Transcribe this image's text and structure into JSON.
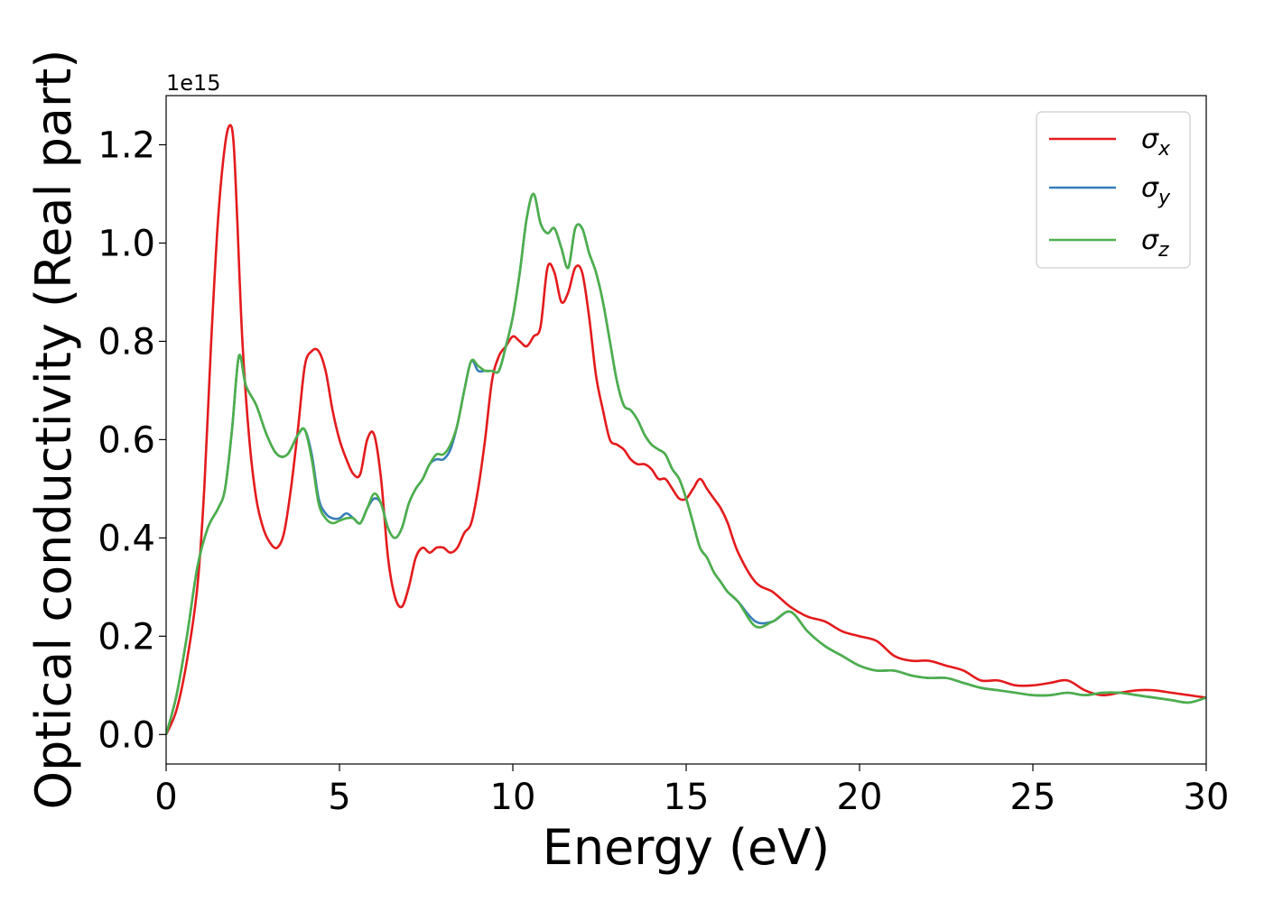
{
  "chart_data": {
    "type": "line",
    "xlabel": "Energy (eV)",
    "ylabel": "Optical conductivity (Real part)",
    "y_offset_label": "1e15",
    "xlim": [
      0,
      30
    ],
    "ylim": [
      -0.06,
      1.3
    ],
    "x_ticks": [
      0,
      5,
      10,
      15,
      20,
      25,
      30
    ],
    "x_tick_labels": [
      "0",
      "5",
      "10",
      "15",
      "20",
      "25",
      "30"
    ],
    "y_ticks": [
      0.0,
      0.2,
      0.4,
      0.6,
      0.8,
      1.0,
      1.2
    ],
    "y_tick_labels": [
      "0.0",
      "0.2",
      "0.4",
      "0.6",
      "0.8",
      "1.0",
      "1.2"
    ],
    "grid": false,
    "legend_position": "top-right",
    "series": [
      {
        "name": "σx",
        "name_base": "σ",
        "name_sub": "x",
        "color": "#e41a1c",
        "x": [
          0.0,
          0.3,
          0.6,
          0.9,
          1.1,
          1.3,
          1.5,
          1.7,
          1.85,
          1.95,
          2.05,
          2.2,
          2.4,
          2.6,
          2.8,
          3.0,
          3.2,
          3.4,
          3.6,
          3.8,
          4.0,
          4.2,
          4.4,
          4.6,
          4.8,
          5.0,
          5.2,
          5.4,
          5.6,
          5.8,
          6.0,
          6.2,
          6.4,
          6.6,
          6.8,
          7.0,
          7.2,
          7.4,
          7.6,
          7.8,
          8.0,
          8.2,
          8.4,
          8.6,
          8.8,
          9.0,
          9.2,
          9.4,
          9.6,
          9.8,
          10.0,
          10.2,
          10.4,
          10.6,
          10.8,
          11.0,
          11.2,
          11.4,
          11.6,
          11.8,
          12.0,
          12.2,
          12.4,
          12.6,
          12.8,
          13.0,
          13.2,
          13.4,
          13.6,
          13.8,
          14.0,
          14.2,
          14.4,
          14.6,
          14.8,
          15.0,
          15.2,
          15.4,
          15.6,
          15.8,
          16.0,
          16.2,
          16.5,
          17.0,
          17.5,
          18.0,
          18.5,
          19.0,
          19.5,
          20.0,
          20.5,
          21.0,
          21.5,
          22.0,
          22.5,
          23.0,
          23.5,
          24.0,
          24.5,
          25.0,
          25.5,
          26.0,
          26.5,
          27.0,
          27.5,
          28.0,
          28.5,
          29.0,
          29.5,
          30.0
        ],
        "y": [
          0.0,
          0.05,
          0.15,
          0.3,
          0.5,
          0.8,
          1.05,
          1.2,
          1.24,
          1.2,
          1.05,
          0.8,
          0.6,
          0.48,
          0.42,
          0.39,
          0.38,
          0.41,
          0.5,
          0.62,
          0.75,
          0.78,
          0.78,
          0.74,
          0.66,
          0.6,
          0.56,
          0.53,
          0.53,
          0.6,
          0.61,
          0.52,
          0.36,
          0.28,
          0.26,
          0.3,
          0.36,
          0.38,
          0.37,
          0.38,
          0.38,
          0.37,
          0.38,
          0.41,
          0.43,
          0.5,
          0.6,
          0.72,
          0.77,
          0.79,
          0.81,
          0.8,
          0.79,
          0.81,
          0.83,
          0.95,
          0.94,
          0.88,
          0.9,
          0.95,
          0.94,
          0.85,
          0.73,
          0.66,
          0.6,
          0.59,
          0.58,
          0.56,
          0.55,
          0.55,
          0.54,
          0.52,
          0.52,
          0.5,
          0.48,
          0.48,
          0.5,
          0.52,
          0.5,
          0.48,
          0.46,
          0.43,
          0.37,
          0.31,
          0.29,
          0.26,
          0.24,
          0.23,
          0.21,
          0.2,
          0.19,
          0.16,
          0.15,
          0.15,
          0.14,
          0.13,
          0.11,
          0.11,
          0.1,
          0.1,
          0.105,
          0.11,
          0.09,
          0.08,
          0.085,
          0.09,
          0.09,
          0.085,
          0.08,
          0.075
        ]
      },
      {
        "name": "σy",
        "name_base": "σ",
        "name_sub": "y",
        "color": "#377eb8",
        "x": [
          0.0,
          0.3,
          0.6,
          0.9,
          1.2,
          1.5,
          1.7,
          1.9,
          2.1,
          2.3,
          2.6,
          2.9,
          3.2,
          3.5,
          3.8,
          4.0,
          4.2,
          4.4,
          4.6,
          4.8,
          5.0,
          5.2,
          5.4,
          5.6,
          5.8,
          6.0,
          6.2,
          6.4,
          6.6,
          6.8,
          7.0,
          7.2,
          7.4,
          7.6,
          7.8,
          8.0,
          8.2,
          8.4,
          8.6,
          8.8,
          9.0,
          9.2,
          9.4,
          9.6,
          9.8,
          10.0,
          10.2,
          10.4,
          10.6,
          10.8,
          11.0,
          11.2,
          11.4,
          11.6,
          11.8,
          12.0,
          12.2,
          12.4,
          12.6,
          12.8,
          13.0,
          13.2,
          13.4,
          13.6,
          13.8,
          14.0,
          14.2,
          14.4,
          14.6,
          14.8,
          15.0,
          15.2,
          15.4,
          15.6,
          15.8,
          16.0,
          16.2,
          16.5,
          17.0,
          17.5,
          18.0,
          18.5,
          19.0,
          19.5,
          20.0,
          20.5,
          21.0,
          21.5,
          22.0,
          22.5,
          23.0,
          23.5,
          24.0,
          24.5,
          25.0,
          25.5,
          26.0,
          26.5,
          27.0,
          27.5,
          28.0,
          28.5,
          29.0,
          29.5,
          30.0
        ],
        "y": [
          0.0,
          0.08,
          0.2,
          0.34,
          0.42,
          0.46,
          0.5,
          0.62,
          0.77,
          0.71,
          0.67,
          0.61,
          0.57,
          0.57,
          0.61,
          0.62,
          0.57,
          0.48,
          0.45,
          0.44,
          0.44,
          0.45,
          0.44,
          0.43,
          0.46,
          0.48,
          0.47,
          0.42,
          0.4,
          0.42,
          0.47,
          0.5,
          0.52,
          0.55,
          0.56,
          0.56,
          0.58,
          0.63,
          0.7,
          0.76,
          0.74,
          0.74,
          0.74,
          0.74,
          0.79,
          0.85,
          0.94,
          1.05,
          1.1,
          1.04,
          1.02,
          1.03,
          0.99,
          0.95,
          1.03,
          1.03,
          0.98,
          0.94,
          0.88,
          0.8,
          0.72,
          0.67,
          0.66,
          0.64,
          0.61,
          0.59,
          0.58,
          0.57,
          0.54,
          0.52,
          0.48,
          0.43,
          0.38,
          0.36,
          0.33,
          0.31,
          0.29,
          0.27,
          0.23,
          0.23,
          0.25,
          0.21,
          0.18,
          0.16,
          0.14,
          0.13,
          0.13,
          0.12,
          0.115,
          0.115,
          0.105,
          0.095,
          0.09,
          0.085,
          0.08,
          0.08,
          0.085,
          0.08,
          0.085,
          0.085,
          0.08,
          0.075,
          0.07,
          0.065,
          0.075
        ]
      },
      {
        "name": "σz",
        "name_base": "σ",
        "name_sub": "z",
        "color": "#4daf4a",
        "x": [
          0.0,
          0.3,
          0.6,
          0.9,
          1.2,
          1.5,
          1.7,
          1.9,
          2.1,
          2.3,
          2.6,
          2.9,
          3.2,
          3.5,
          3.8,
          4.0,
          4.2,
          4.4,
          4.6,
          4.8,
          5.0,
          5.2,
          5.4,
          5.6,
          5.8,
          6.0,
          6.2,
          6.4,
          6.6,
          6.8,
          7.0,
          7.2,
          7.4,
          7.6,
          7.8,
          8.0,
          8.2,
          8.4,
          8.6,
          8.8,
          9.0,
          9.2,
          9.4,
          9.6,
          9.8,
          10.0,
          10.2,
          10.4,
          10.6,
          10.8,
          11.0,
          11.2,
          11.4,
          11.6,
          11.8,
          12.0,
          12.2,
          12.4,
          12.6,
          12.8,
          13.0,
          13.2,
          13.4,
          13.6,
          13.8,
          14.0,
          14.2,
          14.4,
          14.6,
          14.8,
          15.0,
          15.2,
          15.4,
          15.6,
          15.8,
          16.0,
          16.2,
          16.5,
          17.0,
          17.5,
          18.0,
          18.5,
          19.0,
          19.5,
          20.0,
          20.5,
          21.0,
          21.5,
          22.0,
          22.5,
          23.0,
          23.5,
          24.0,
          24.5,
          25.0,
          25.5,
          26.0,
          26.5,
          27.0,
          27.5,
          28.0,
          28.5,
          29.0,
          29.5,
          30.0
        ],
        "y": [
          0.0,
          0.08,
          0.2,
          0.34,
          0.42,
          0.46,
          0.5,
          0.62,
          0.77,
          0.71,
          0.67,
          0.61,
          0.57,
          0.57,
          0.61,
          0.62,
          0.56,
          0.47,
          0.44,
          0.43,
          0.435,
          0.44,
          0.44,
          0.43,
          0.46,
          0.49,
          0.47,
          0.42,
          0.4,
          0.42,
          0.47,
          0.5,
          0.52,
          0.55,
          0.57,
          0.57,
          0.59,
          0.63,
          0.7,
          0.76,
          0.75,
          0.74,
          0.74,
          0.74,
          0.79,
          0.85,
          0.94,
          1.05,
          1.1,
          1.04,
          1.02,
          1.03,
          0.99,
          0.95,
          1.03,
          1.03,
          0.98,
          0.94,
          0.88,
          0.8,
          0.72,
          0.67,
          0.66,
          0.64,
          0.61,
          0.59,
          0.58,
          0.57,
          0.54,
          0.52,
          0.48,
          0.43,
          0.38,
          0.36,
          0.33,
          0.31,
          0.29,
          0.27,
          0.22,
          0.23,
          0.25,
          0.21,
          0.18,
          0.16,
          0.14,
          0.13,
          0.13,
          0.12,
          0.115,
          0.115,
          0.105,
          0.095,
          0.09,
          0.085,
          0.08,
          0.08,
          0.085,
          0.08,
          0.085,
          0.085,
          0.08,
          0.075,
          0.07,
          0.065,
          0.075
        ]
      }
    ]
  }
}
